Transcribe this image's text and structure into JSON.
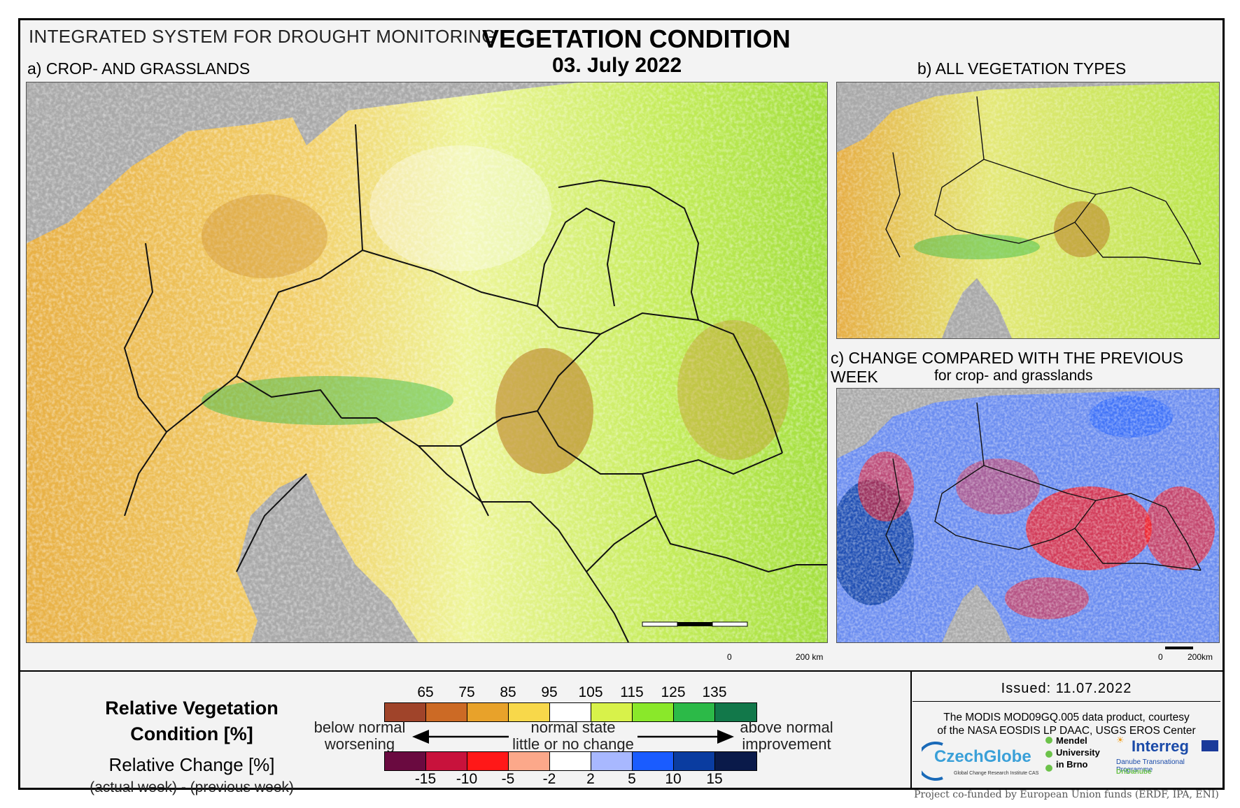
{
  "header": {
    "system_title": "INTEGRATED SYSTEM FOR DROUGHT MONITORING",
    "title": "VEGETATION CONDITION",
    "date": "03. July 2022"
  },
  "panels": {
    "a_label": "a) CROP- AND GRASSLANDS",
    "b_label": "b) ALL VEGETATION TYPES",
    "c_label": "c) CHANGE COMPARED WITH THE PREVIOUS WEEK",
    "c_sublabel": "for crop- and grasslands"
  },
  "scalebars": {
    "a_zero": "0",
    "a_km": "200 km",
    "c_zero": "0",
    "c_km": "200km"
  },
  "legend": {
    "rvc_title_line1": "Relative Vegetation",
    "rvc_title_line2": "Condition [%]",
    "rc_title": "Relative Change [%]",
    "rc_subtitle": "(actual week) - (previous week)",
    "rvc_ticks": [
      "65",
      "75",
      "85",
      "95",
      "105",
      "115",
      "125",
      "135"
    ],
    "rvc_colors": [
      "#a0442a",
      "#cc6a25",
      "#e8a22a",
      "#f8d84a",
      "#ffffff",
      "#d8f24a",
      "#8ae82a",
      "#2cba48",
      "#12784a"
    ],
    "rc_ticks": [
      "-15",
      "-10",
      "-5",
      "-2",
      "2",
      "5",
      "10",
      "15"
    ],
    "rc_colors": [
      "#6a0a40",
      "#c8123c",
      "#ff1818",
      "#fca88a",
      "#ffffff",
      "#a8b8ff",
      "#1a5cff",
      "#0a3ca0",
      "#0a1a4a"
    ],
    "below_1": "below normal",
    "below_2": "worsening",
    "normal_1": "normal state",
    "normal_2": "little or no change",
    "above_1": "above normal",
    "above_2": "improvement"
  },
  "info": {
    "issued": "Issued: 11.07.2022",
    "credit_line1": "The MODIS MOD09GQ.005 data product, courtesy",
    "credit_line2": "of the NASA EOSDIS LP DAAC, USGS EROS Center",
    "logo_czechglobe": "CzechGlobe",
    "logo_czechglobe_sub": "Global Change Research Institute CAS",
    "logo_mendel_1": "Mendel",
    "logo_mendel_2": "University",
    "logo_mendel_3": "in Brno",
    "logo_interreg": "Interreg",
    "logo_interreg_sub": "Danube Transnational Programme",
    "logo_dridanube": "DriDanube",
    "funded": "Project co-funded by European Union funds (ERDF, IPA, ENI)"
  }
}
